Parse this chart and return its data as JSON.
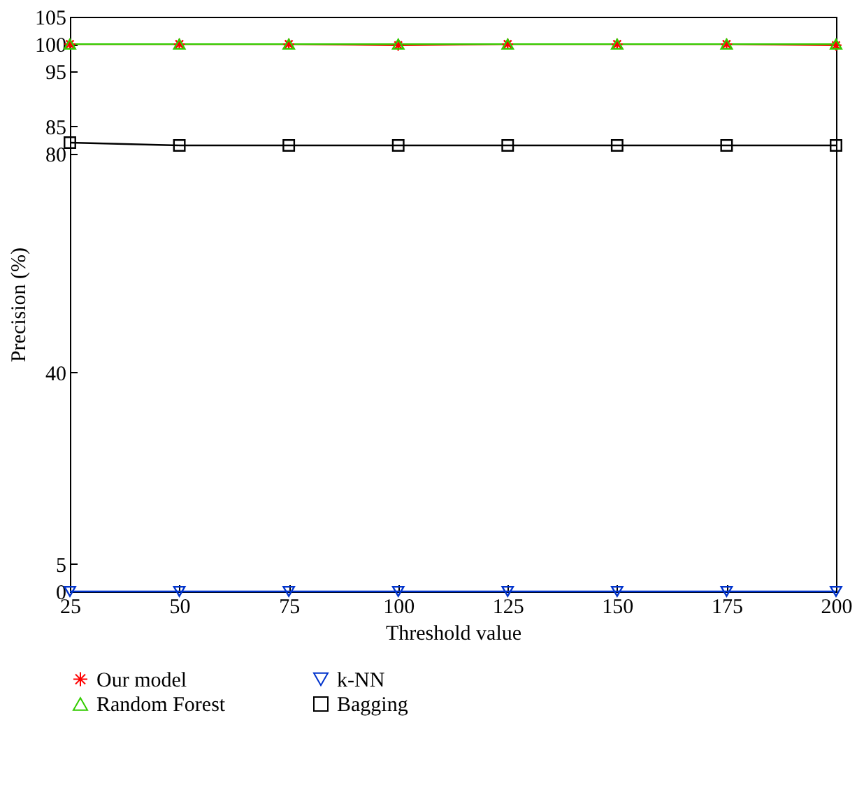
{
  "chart_data": {
    "type": "line",
    "xlabel": "Threshold value",
    "ylabel": "Precision (%)",
    "x": [
      25,
      50,
      75,
      100,
      125,
      150,
      175,
      200
    ],
    "series": [
      {
        "name": "Our model",
        "color": "#ff0000",
        "marker": "cross",
        "values": [
          100,
          100,
          100,
          99.8,
          100,
          100,
          100,
          99.8
        ]
      },
      {
        "name": "k-NN",
        "color": "#0033cc",
        "marker": "triangle-down",
        "values": [
          0,
          0,
          0,
          0,
          0,
          0,
          0,
          0
        ]
      },
      {
        "name": "Random Forest",
        "color": "#33cc00",
        "marker": "triangle",
        "values": [
          100,
          100,
          100,
          100,
          100,
          100,
          100,
          100
        ]
      },
      {
        "name": "Bagging",
        "color": "#000000",
        "marker": "square",
        "values": [
          82,
          81.5,
          81.5,
          81.5,
          81.5,
          81.5,
          81.5,
          81.5
        ]
      }
    ],
    "xlim": [
      25,
      200
    ],
    "xticks": [
      25,
      50,
      75,
      100,
      125,
      150,
      175,
      200
    ],
    "ylim": [
      0,
      105
    ],
    "yticks": [
      0,
      5,
      40,
      80,
      85,
      95,
      100,
      105
    ],
    "grid": false,
    "legend": "bottom",
    "line_style": "solid"
  }
}
